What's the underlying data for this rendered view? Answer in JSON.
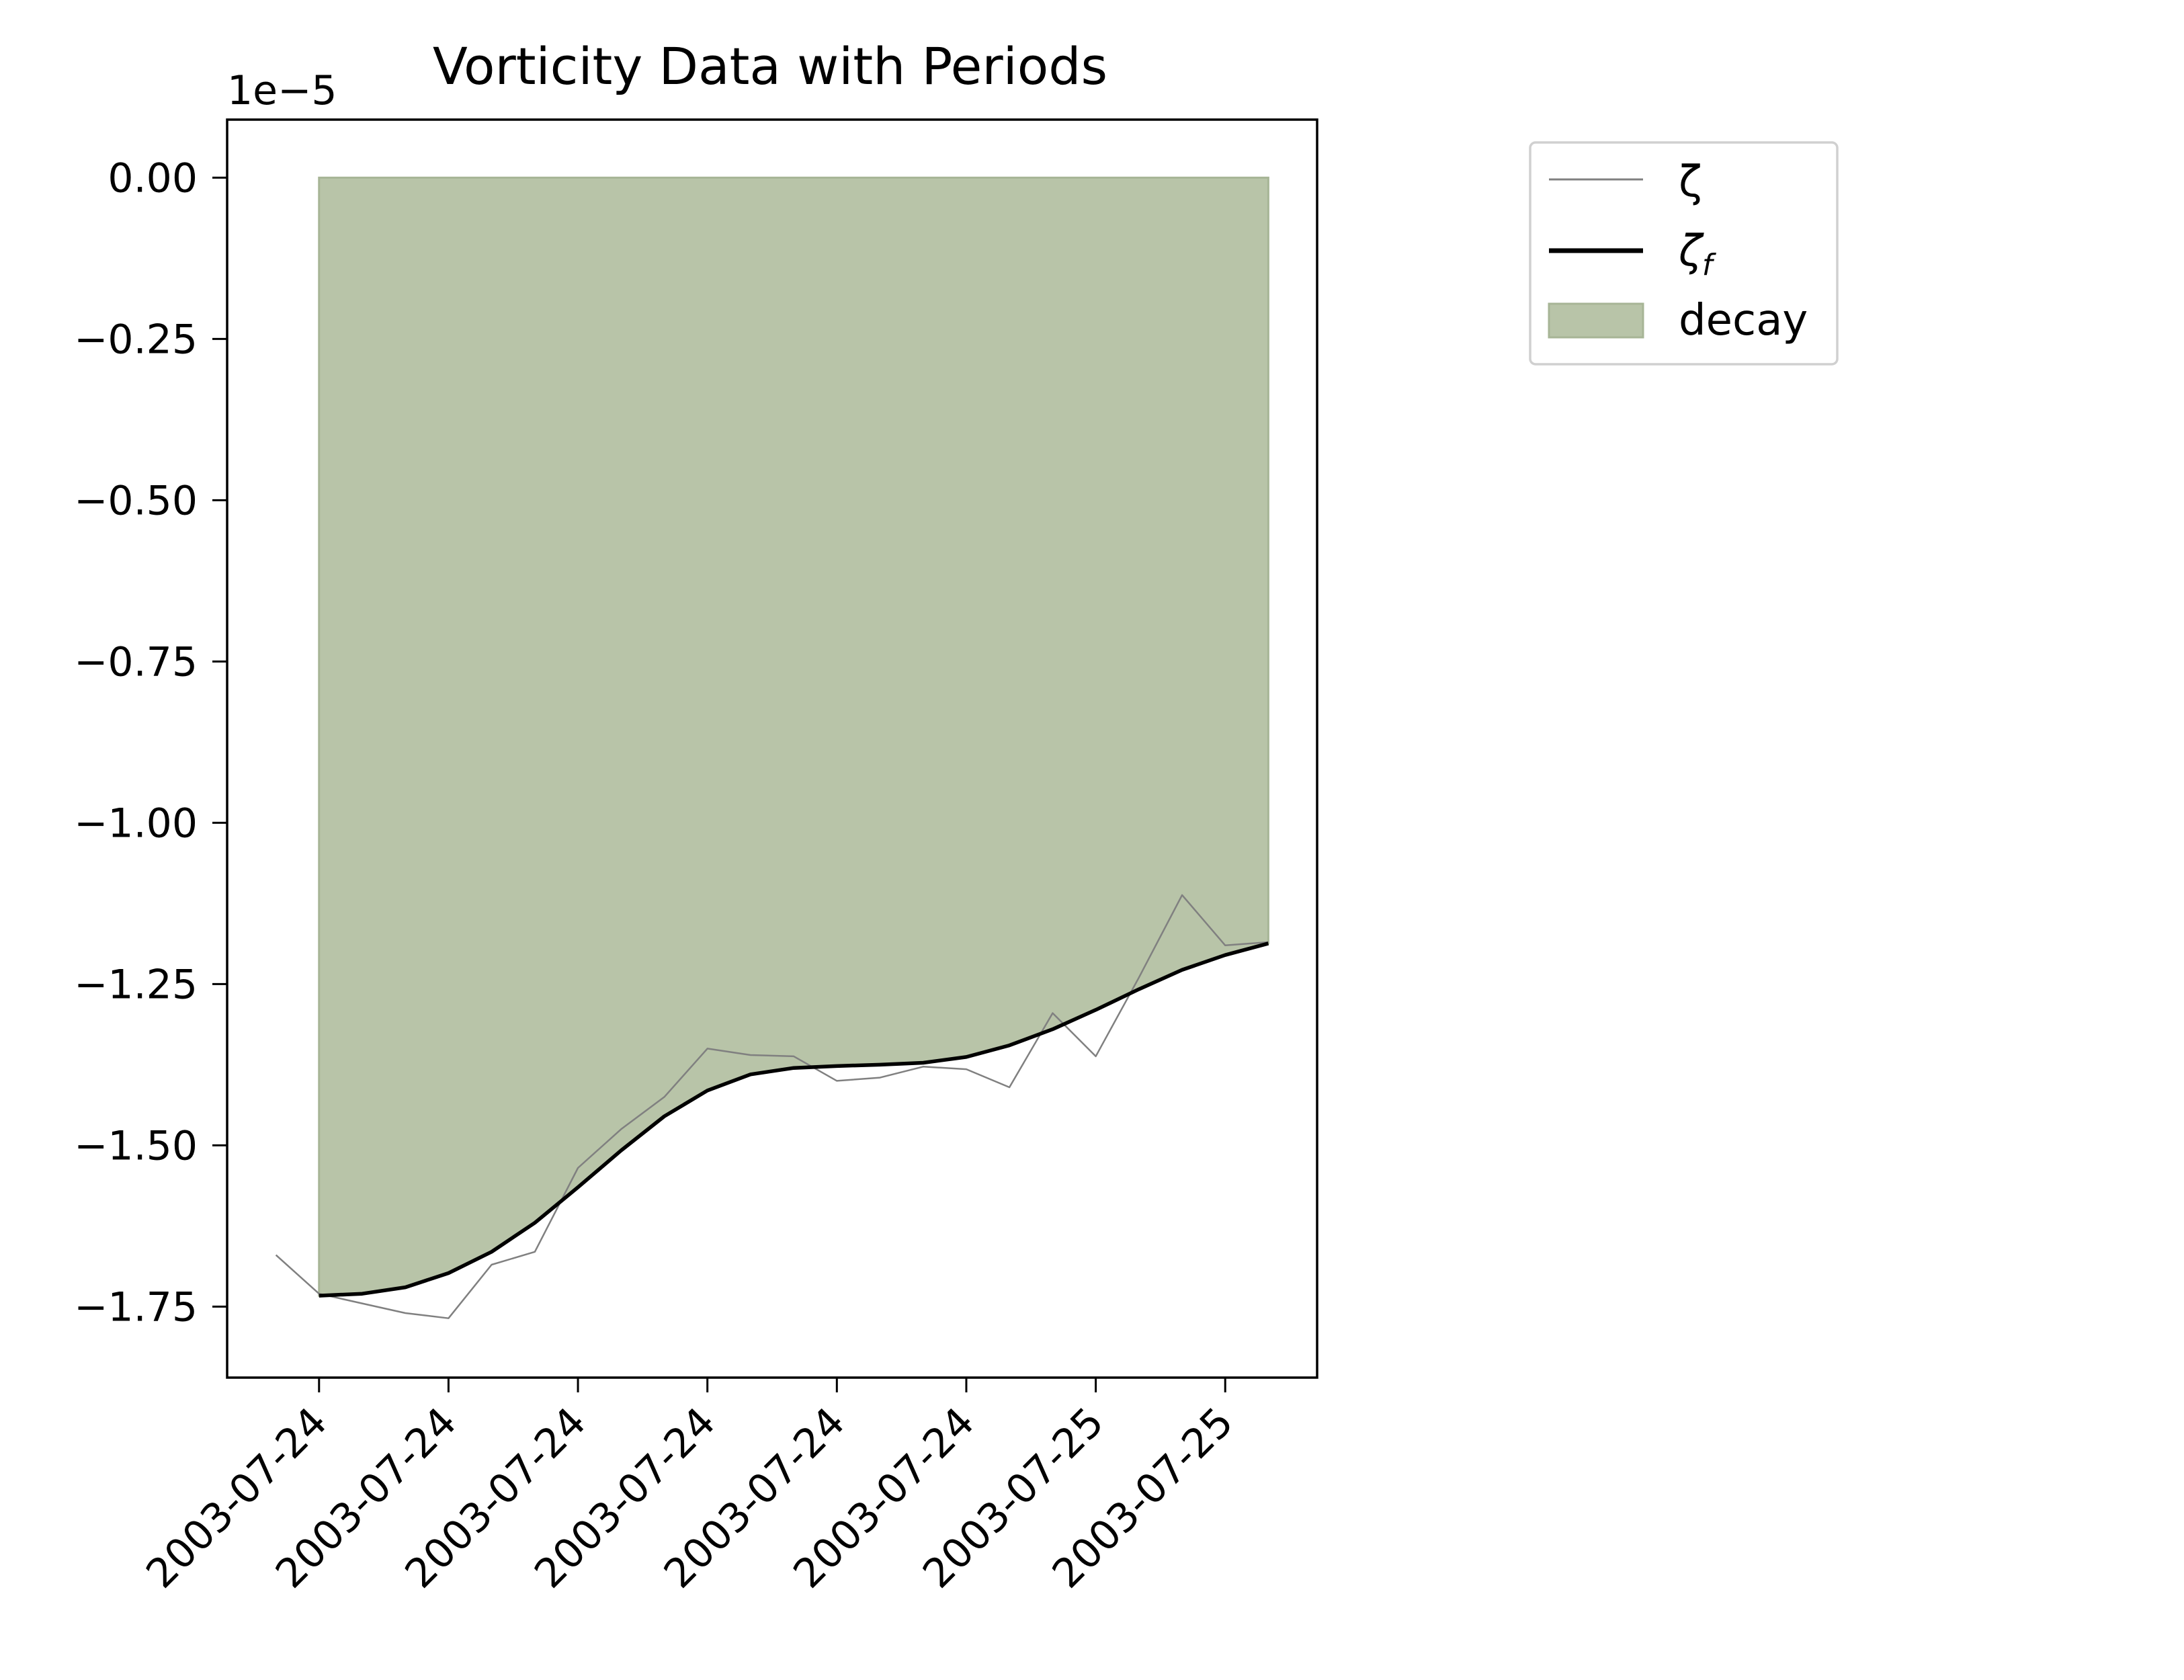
{
  "chart_data": {
    "type": "line",
    "title": "Vorticity Data with Periods",
    "xlabel": "",
    "ylabel": "",
    "offset_text": "1e−5",
    "scale": 1e-05,
    "ylim": [
      -1.86,
      0.09
    ],
    "yticks": [
      0.0,
      -0.25,
      -0.5,
      -0.75,
      -1.0,
      -1.25,
      -1.5,
      -1.75
    ],
    "ytick_labels": [
      "0.00",
      "−0.25",
      "−0.50",
      "−0.75",
      "−1.00",
      "−1.25",
      "−1.50",
      "−1.75"
    ],
    "xlim": [
      -0.71,
      7.71
    ],
    "xticks": [
      0,
      1,
      2,
      3,
      4,
      5,
      6,
      7
    ],
    "xtick_labels": [
      "2003-07-24",
      "2003-07-24",
      "2003-07-24",
      "2003-07-24",
      "2003-07-24",
      "2003-07-24",
      "2003-07-25",
      "2003-07-25"
    ],
    "grid": false,
    "legend_position": "outside-upper-right",
    "series": [
      {
        "name": "ζ",
        "color": "#808080",
        "x": [
          -0.333,
          0,
          0.333,
          0.667,
          1.0,
          1.333,
          1.667,
          2.0,
          2.333,
          2.667,
          3.0,
          3.333,
          3.667,
          4.0,
          4.333,
          4.667,
          5.0,
          5.333,
          5.667,
          6.0,
          6.333,
          6.667,
          7.0,
          7.333
        ],
        "values": [
          -1.67,
          -1.73,
          -1.745,
          -1.76,
          -1.768,
          -1.685,
          -1.665,
          -1.535,
          -1.475,
          -1.425,
          -1.35,
          -1.36,
          -1.362,
          -1.4,
          -1.395,
          -1.378,
          -1.382,
          -1.41,
          -1.295,
          -1.362,
          -1.24,
          -1.112,
          -1.19,
          -1.185
        ]
      },
      {
        "name": "ζ",
        "name_subscript": "f",
        "color": "#000000",
        "x": [
          0,
          0.333,
          0.667,
          1.0,
          1.333,
          1.667,
          2.0,
          2.333,
          2.667,
          3.0,
          3.333,
          3.667,
          4.0,
          4.333,
          4.667,
          5.0,
          5.333,
          5.667,
          6.0,
          6.333,
          6.667,
          7.0,
          7.333
        ],
        "values": [
          -1.733,
          -1.73,
          -1.72,
          -1.698,
          -1.665,
          -1.62,
          -1.565,
          -1.508,
          -1.455,
          -1.415,
          -1.39,
          -1.38,
          -1.377,
          -1.375,
          -1.372,
          -1.363,
          -1.345,
          -1.32,
          -1.29,
          -1.258,
          -1.228,
          -1.205,
          -1.187
        ]
      }
    ],
    "shaded_regions": [
      {
        "name": "decay",
        "color": "#b8c4a8",
        "edge_color": "#a7b596",
        "upper": 0.0,
        "lower_series": 1
      }
    ]
  }
}
